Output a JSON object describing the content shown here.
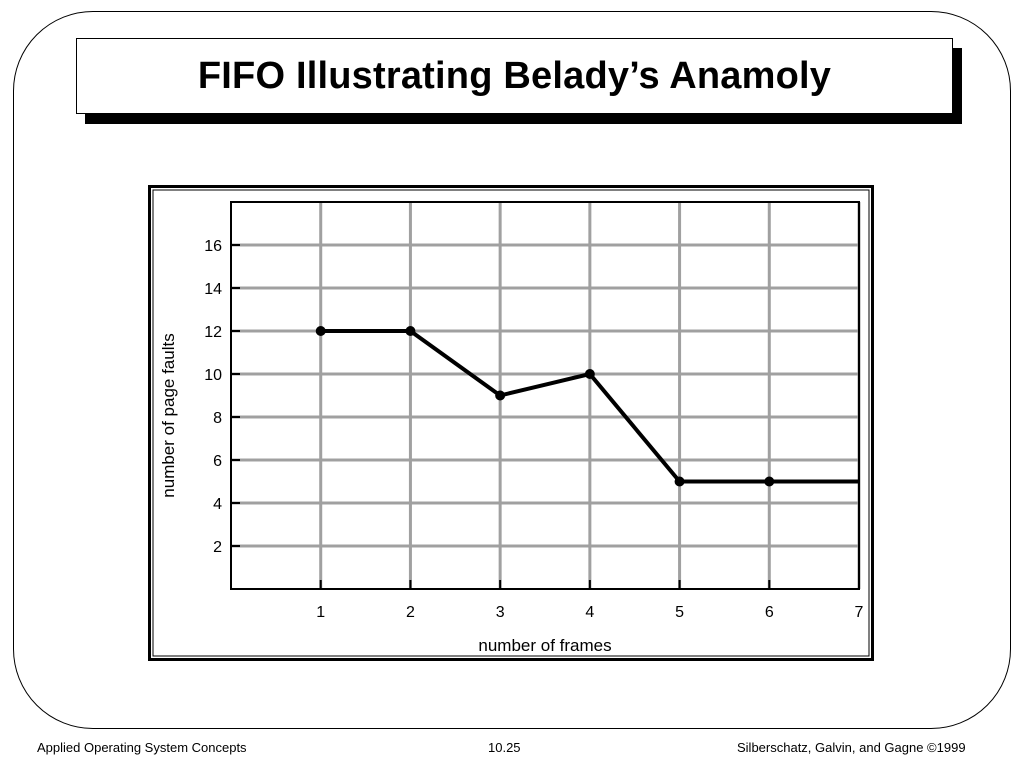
{
  "slide": {
    "title": "FIFO Illustrating Belady’s Anamoly"
  },
  "footer": {
    "left": "Applied Operating System Concepts",
    "center": "10.25",
    "right": "Silberschatz, Galvin, and Gagne ©1999"
  },
  "chart_data": {
    "type": "line",
    "title": "",
    "xlabel": "number of frames",
    "ylabel": "number of page faults",
    "x": [
      1,
      2,
      3,
      4,
      5,
      6,
      7
    ],
    "series": [
      {
        "values": [
          12,
          12,
          9,
          10,
          5,
          5,
          5
        ]
      }
    ],
    "xlim": [
      0,
      7
    ],
    "ylim": [
      0,
      18
    ],
    "x_ticks": [
      1,
      2,
      3,
      4,
      5,
      6,
      7
    ],
    "y_ticks": [
      2,
      4,
      6,
      8,
      10,
      12,
      14,
      16
    ],
    "grid": true,
    "legend": "none",
    "colors": {
      "line": "#000000",
      "grid": "#a0a0a0",
      "frame": "#000000"
    }
  }
}
